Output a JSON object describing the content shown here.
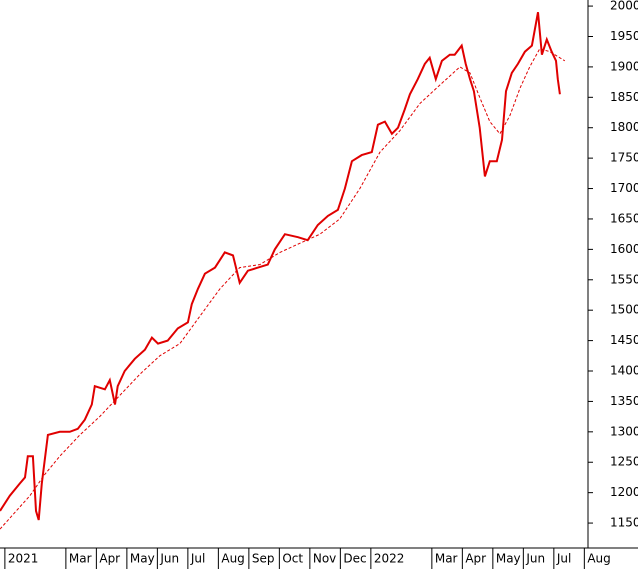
{
  "chart_data": {
    "type": "line",
    "xlim": [
      -0.16,
      19.12
    ],
    "ylim": [
      1109,
      2010
    ],
    "xticks": [
      {
        "value": 0,
        "label": "2021"
      },
      {
        "value": 2,
        "label": "Mar"
      },
      {
        "value": 3,
        "label": "Apr"
      },
      {
        "value": 4,
        "label": "May"
      },
      {
        "value": 5,
        "label": "Jun"
      },
      {
        "value": 6,
        "label": "Jul"
      },
      {
        "value": 7,
        "label": "Aug"
      },
      {
        "value": 8,
        "label": "Sep"
      },
      {
        "value": 9,
        "label": "Oct"
      },
      {
        "value": 10,
        "label": "Nov"
      },
      {
        "value": 11,
        "label": "Dec"
      },
      {
        "value": 12,
        "label": "2022"
      },
      {
        "value": 14,
        "label": "Mar"
      },
      {
        "value": 15,
        "label": "Apr"
      },
      {
        "value": 16,
        "label": "May"
      },
      {
        "value": 17,
        "label": "Jun"
      },
      {
        "value": 18,
        "label": "Jul"
      },
      {
        "value": 19,
        "label": "Aug"
      }
    ],
    "yticks": [
      1150,
      1200,
      1250,
      1300,
      1350,
      1400,
      1450,
      1500,
      1550,
      1600,
      1650,
      1700,
      1750,
      1800,
      1850,
      1900,
      1950,
      2000
    ],
    "series": [
      {
        "color": "#e00000",
        "style": "solid",
        "x": [
          -0.16,
          0.16,
          0.49,
          0.66,
          0.75,
          0.92,
          1.02,
          1.11,
          1.21,
          1.41,
          1.8,
          2.13,
          2.39,
          2.62,
          2.85,
          2.95,
          3.28,
          3.44,
          3.61,
          3.7,
          3.93,
          4.26,
          4.59,
          4.82,
          5.02,
          5.34,
          5.67,
          6.0,
          6.13,
          6.33,
          6.56,
          6.89,
          7.21,
          7.48,
          7.7,
          7.97,
          8.3,
          8.62,
          8.85,
          9.18,
          9.61,
          9.93,
          10.26,
          10.59,
          10.92,
          11.15,
          11.38,
          11.7,
          12.03,
          12.23,
          12.46,
          12.69,
          12.89,
          13.11,
          13.28,
          13.54,
          13.77,
          13.93,
          14.13,
          14.33,
          14.59,
          14.75,
          14.98,
          15.11,
          15.25,
          15.38,
          15.57,
          15.74,
          15.9,
          16.13,
          16.3,
          16.43,
          16.62,
          16.82,
          17.05,
          17.28,
          17.48,
          17.61,
          17.77,
          17.93,
          18.07,
          18.13,
          18.2
        ],
        "values": [
          1170,
          1195,
          1215,
          1225,
          1260,
          1260,
          1170,
          1155,
          1215,
          1295,
          1300,
          1300,
          1305,
          1320,
          1345,
          1375,
          1370,
          1385,
          1345,
          1375,
          1400,
          1420,
          1435,
          1455,
          1445,
          1450,
          1470,
          1480,
          1510,
          1535,
          1560,
          1570,
          1595,
          1590,
          1545,
          1565,
          1570,
          1575,
          1600,
          1625,
          1620,
          1615,
          1640,
          1655,
          1665,
          1700,
          1745,
          1755,
          1760,
          1805,
          1810,
          1790,
          1800,
          1830,
          1855,
          1880,
          1905,
          1915,
          1880,
          1910,
          1920,
          1920,
          1935,
          1905,
          1880,
          1860,
          1800,
          1720,
          1745,
          1745,
          1780,
          1860,
          1890,
          1905,
          1925,
          1935,
          1990,
          1920,
          1945,
          1925,
          1910,
          1880,
          1855
        ]
      },
      {
        "color": "#e00000",
        "style": "dashed",
        "x": [
          -0.16,
          0.82,
          1.31,
          1.8,
          2.46,
          3.11,
          3.77,
          4.43,
          5.08,
          5.74,
          6.39,
          7.05,
          7.7,
          8.36,
          9.02,
          9.67,
          10.33,
          10.98,
          11.64,
          12.3,
          12.95,
          13.61,
          14.26,
          14.92,
          15.25,
          15.57,
          15.9,
          16.23,
          16.56,
          16.89,
          17.21,
          17.54,
          17.87,
          18.36
        ],
        "values": [
          1140,
          1195,
          1230,
          1260,
          1295,
          1325,
          1360,
          1395,
          1425,
          1445,
          1490,
          1535,
          1570,
          1575,
          1595,
          1610,
          1625,
          1650,
          1700,
          1760,
          1795,
          1840,
          1870,
          1900,
          1890,
          1850,
          1810,
          1790,
          1820,
          1865,
          1900,
          1930,
          1925,
          1910
        ]
      }
    ]
  }
}
